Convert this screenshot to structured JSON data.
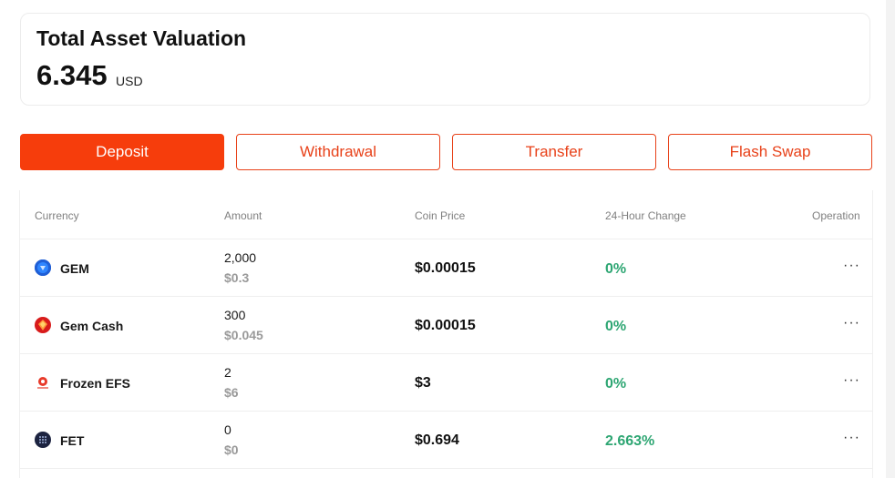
{
  "summary": {
    "title": "Total Asset Valuation",
    "value": "6.345",
    "unit": "USD"
  },
  "actions": {
    "deposit": "Deposit",
    "withdrawal": "Withdrawal",
    "transfer": "Transfer",
    "flash_swap": "Flash Swap"
  },
  "table": {
    "headers": {
      "currency": "Currency",
      "amount": "Amount",
      "coin_price": "Coin Price",
      "change": "24-Hour Change",
      "operation": "Operation"
    },
    "rows": [
      {
        "name": "GEM",
        "amount": "2,000",
        "amount_usd": "$0.3",
        "price": "$0.00015",
        "change": "0%",
        "ops": "···",
        "icon": "gem-coin-icon"
      },
      {
        "name": "Gem Cash",
        "amount": "300",
        "amount_usd": "$0.045",
        "price": "$0.00015",
        "change": "0%",
        "ops": "···",
        "icon": "gem-cash-coin-icon"
      },
      {
        "name": "Frozen EFS",
        "amount": "2",
        "amount_usd": "$6",
        "price": "$3",
        "change": "0%",
        "ops": "···",
        "icon": "frozen-efs-coin-icon"
      },
      {
        "name": "FET",
        "amount": "0",
        "amount_usd": "$0",
        "price": "$0.694",
        "change": "2.663%",
        "ops": "···",
        "icon": "fet-coin-icon"
      }
    ]
  },
  "colors": {
    "accent": "#f63d0c",
    "positive": "#2ea673"
  }
}
